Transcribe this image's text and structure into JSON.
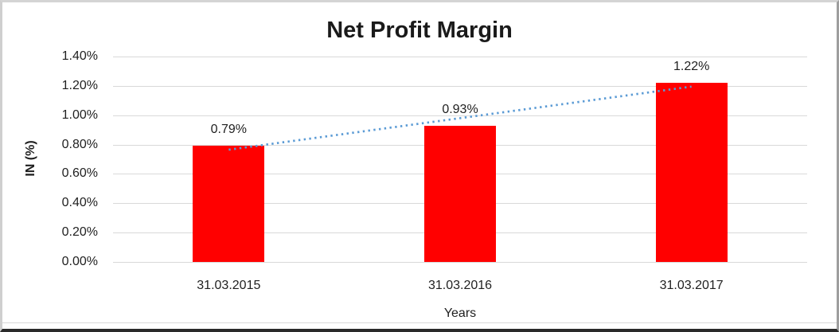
{
  "chart_data": {
    "type": "bar",
    "title": "Net Profit Margin",
    "categories": [
      "31.03.2015",
      "31.03.2016",
      "31.03.2017"
    ],
    "values": [
      0.79,
      0.93,
      1.22
    ],
    "data_labels": [
      "0.79%",
      "0.93%",
      "1.22%"
    ],
    "xlabel": "Years",
    "ylabel": "IN (%)",
    "ylim": [
      0,
      1.4
    ],
    "yticks": [
      {
        "value": 0.0,
        "label": "0.00%"
      },
      {
        "value": 0.2,
        "label": "0.20%"
      },
      {
        "value": 0.4,
        "label": "0.40%"
      },
      {
        "value": 0.6,
        "label": "0.60%"
      },
      {
        "value": 0.8,
        "label": "0.80%"
      },
      {
        "value": 1.0,
        "label": "1.00%"
      },
      {
        "value": 1.2,
        "label": "1.20%"
      },
      {
        "value": 1.4,
        "label": "1.40%"
      }
    ],
    "grid": true,
    "legend": "none",
    "bar_color": "#FF0000",
    "gridline_color": "#d9d9d9",
    "trendline": {
      "type": "linear",
      "style": "dotted",
      "color": "#5B9BD5"
    }
  }
}
